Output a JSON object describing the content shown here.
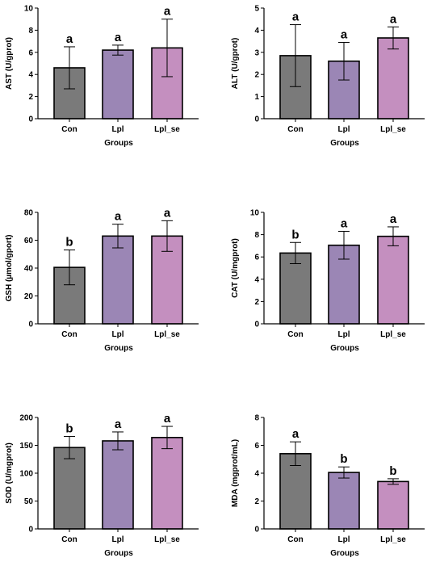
{
  "chart_data": [
    {
      "type": "bar",
      "title": "",
      "xlabel": "Groups",
      "ylabel": "AST (U/gprot)",
      "categories": [
        "Con",
        "Lpl",
        "Lpl_se"
      ],
      "values": [
        4.6,
        6.2,
        6.4
      ],
      "errors": [
        1.9,
        0.45,
        2.6
      ],
      "significance": [
        "a",
        "a",
        "a"
      ],
      "ylim": [
        0,
        10
      ],
      "yticks": [
        0,
        2,
        4,
        6,
        8,
        10
      ],
      "colors": [
        "#7a7a7a",
        "#9b86b5",
        "#c48fbf"
      ]
    },
    {
      "type": "bar",
      "title": "",
      "xlabel": "Groups",
      "ylabel": "ALT (U/gprot)",
      "categories": [
        "Con",
        "Lpl",
        "Lpl_se"
      ],
      "values": [
        2.85,
        2.6,
        3.65
      ],
      "errors": [
        1.4,
        0.85,
        0.5
      ],
      "significance": [
        "a",
        "a",
        "a"
      ],
      "ylim": [
        0,
        5
      ],
      "yticks": [
        0,
        1,
        2,
        3,
        4,
        5
      ],
      "colors": [
        "#7a7a7a",
        "#9b86b5",
        "#c48fbf"
      ]
    },
    {
      "type": "bar",
      "title": "",
      "xlabel": "Groups",
      "ylabel": "GSH (µmol/gport)",
      "categories": [
        "Con",
        "Lpl",
        "Lpl_se"
      ],
      "values": [
        40.5,
        63,
        63
      ],
      "errors": [
        12.5,
        8.5,
        11
      ],
      "significance": [
        "b",
        "a",
        "a"
      ],
      "ylim": [
        0,
        80
      ],
      "yticks": [
        0,
        20,
        40,
        60,
        80
      ],
      "colors": [
        "#7a7a7a",
        "#9b86b5",
        "#c48fbf"
      ]
    },
    {
      "type": "bar",
      "title": "",
      "xlabel": "Groups",
      "ylabel": "CAT (U/mgprot)",
      "categories": [
        "Con",
        "Lpl",
        "Lpl_se"
      ],
      "values": [
        6.35,
        7.05,
        7.85
      ],
      "errors": [
        0.95,
        1.25,
        0.85
      ],
      "significance": [
        "b",
        "a",
        "a"
      ],
      "ylim": [
        0,
        10
      ],
      "yticks": [
        0,
        2,
        4,
        6,
        8,
        10
      ],
      "colors": [
        "#7a7a7a",
        "#9b86b5",
        "#c48fbf"
      ]
    },
    {
      "type": "bar",
      "title": "",
      "xlabel": "Groups",
      "ylabel": "SOD (U/mgprot)",
      "categories": [
        "Con",
        "Lpl",
        "Lpl_se"
      ],
      "values": [
        146,
        158,
        164
      ],
      "errors": [
        20,
        16,
        20
      ],
      "significance": [
        "b",
        "a",
        "a"
      ],
      "ylim": [
        0,
        200
      ],
      "yticks": [
        0,
        50,
        100,
        150,
        200
      ],
      "colors": [
        "#7a7a7a",
        "#9b86b5",
        "#c48fbf"
      ]
    },
    {
      "type": "bar",
      "title": "",
      "xlabel": "Groups",
      "ylabel": "MDA (mgprot/mL)",
      "categories": [
        "Con",
        "Lpl",
        "Lpl_se"
      ],
      "values": [
        5.4,
        4.05,
        3.4
      ],
      "errors": [
        0.85,
        0.4,
        0.2
      ],
      "significance": [
        "a",
        "b",
        "b"
      ],
      "ylim": [
        0,
        8
      ],
      "yticks": [
        0,
        2,
        4,
        6,
        8
      ],
      "colors": [
        "#7a7a7a",
        "#9b86b5",
        "#c48fbf"
      ]
    }
  ]
}
